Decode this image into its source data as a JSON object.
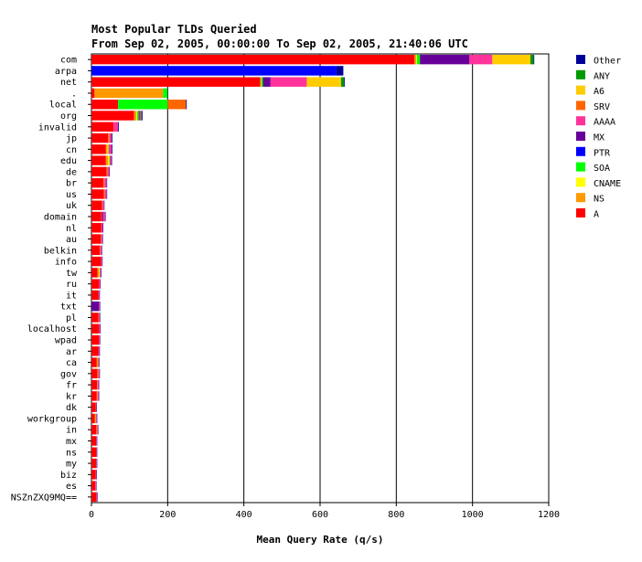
{
  "chart_data": {
    "type": "bar",
    "orientation": "horizontal",
    "stacked": true,
    "title": "Most Popular TLDs Queried",
    "subtitle": "From Sep 02, 2005, 00:00:00 To Sep 02, 2005, 21:40:06 UTC",
    "xlabel": "Mean Query Rate (q/s)",
    "ylabel": "",
    "xlim": [
      0,
      1200
    ],
    "xticks": [
      "0",
      "200",
      "400",
      "600",
      "800",
      "1000",
      "1200"
    ],
    "grid": "vertical",
    "legend_position": "right",
    "categories": [
      "com",
      "arpa",
      "net",
      ".",
      "local",
      "org",
      "invalid",
      "jp",
      "cn",
      "edu",
      "de",
      "br",
      "us",
      "uk",
      "domain",
      "nl",
      "au",
      "belkin",
      "info",
      "tw",
      "ru",
      "it",
      "txt",
      "pl",
      "localhost",
      "wpad",
      "ar",
      "ca",
      "gov",
      "fr",
      "kr",
      "dk",
      "workgroup",
      "in",
      "mx",
      "ns",
      "my",
      "biz",
      "es",
      "NSZnZXQ9MQ=="
    ],
    "series": [
      {
        "name": "A",
        "color": "#ff0000",
        "values": [
          848,
          0,
          443,
          8,
          70,
          112,
          58,
          44,
          38,
          38,
          40,
          32,
          33,
          28,
          26,
          26,
          24,
          22,
          25,
          16,
          20,
          18,
          0,
          18,
          20,
          20,
          18,
          14,
          16,
          15,
          14,
          11,
          9,
          13,
          12,
          13,
          12,
          11,
          10,
          13
        ]
      },
      {
        "name": "NS",
        "color": "#ff9900",
        "values": [
          4,
          0,
          2,
          180,
          0,
          6,
          0,
          3,
          4,
          6,
          2,
          2,
          2,
          1,
          1,
          0,
          1,
          1,
          0,
          4,
          0,
          0,
          0,
          1,
          0,
          0,
          0,
          4,
          2,
          1,
          2,
          0,
          3,
          2,
          0,
          0,
          0,
          0,
          0,
          0
        ]
      },
      {
        "name": "CNAME",
        "color": "#ffff00",
        "values": [
          2,
          0,
          1,
          0,
          0,
          2,
          0,
          0,
          2,
          3,
          0,
          0,
          0,
          0,
          0,
          0,
          0,
          0,
          0,
          2,
          0,
          0,
          0,
          0,
          0,
          0,
          0,
          0,
          0,
          0,
          0,
          0,
          0,
          0,
          0,
          0,
          0,
          0,
          0,
          0
        ]
      },
      {
        "name": "SOA",
        "color": "#00ff00",
        "values": [
          8,
          0,
          4,
          12,
          130,
          4,
          0,
          0,
          1,
          1,
          0,
          0,
          0,
          0,
          0,
          0,
          0,
          0,
          0,
          0,
          0,
          0,
          0,
          0,
          0,
          0,
          0,
          0,
          0,
          0,
          0,
          0,
          0,
          0,
          0,
          0,
          0,
          0,
          0,
          0
        ]
      },
      {
        "name": "PTR",
        "color": "#0000ff",
        "values": [
          0,
          643,
          0,
          0,
          0,
          0,
          0,
          0,
          0,
          0,
          0,
          0,
          0,
          0,
          0,
          0,
          0,
          0,
          0,
          0,
          0,
          0,
          0,
          0,
          0,
          0,
          0,
          0,
          0,
          0,
          0,
          0,
          0,
          0,
          0,
          0,
          0,
          0,
          0,
          0
        ]
      },
      {
        "name": "MX",
        "color": "#660099",
        "values": [
          130,
          0,
          20,
          0,
          0,
          2,
          0,
          0,
          0,
          0,
          0,
          0,
          0,
          0,
          3,
          0,
          0,
          0,
          0,
          0,
          0,
          0,
          20,
          0,
          0,
          0,
          0,
          0,
          0,
          0,
          0,
          0,
          0,
          0,
          0,
          0,
          0,
          0,
          0,
          0
        ]
      },
      {
        "name": "AAAA",
        "color": "#ff3399",
        "values": [
          60,
          0,
          95,
          0,
          0,
          4,
          12,
          6,
          8,
          4,
          5,
          6,
          5,
          4,
          6,
          4,
          4,
          4,
          3,
          3,
          3,
          3,
          2,
          3,
          3,
          2,
          3,
          2,
          3,
          3,
          3,
          2,
          2,
          2,
          2,
          1,
          2,
          2,
          2,
          2
        ]
      },
      {
        "name": "SRV",
        "color": "#ff6600",
        "values": [
          0,
          0,
          0,
          0,
          48,
          0,
          0,
          0,
          0,
          0,
          0,
          0,
          0,
          0,
          0,
          0,
          0,
          0,
          0,
          0,
          0,
          0,
          0,
          0,
          0,
          0,
          0,
          0,
          0,
          0,
          0,
          0,
          0,
          0,
          0,
          0,
          0,
          0,
          0,
          0
        ]
      },
      {
        "name": "A6",
        "color": "#ffcc00",
        "values": [
          100,
          0,
          90,
          0,
          0,
          0,
          0,
          0,
          0,
          0,
          0,
          0,
          0,
          0,
          0,
          0,
          0,
          0,
          0,
          0,
          0,
          0,
          0,
          0,
          0,
          0,
          0,
          0,
          0,
          0,
          0,
          0,
          0,
          0,
          0,
          0,
          0,
          0,
          0,
          0
        ]
      },
      {
        "name": "ANY",
        "color": "#009900",
        "values": [
          8,
          0,
          8,
          0,
          0,
          2,
          0,
          0,
          0,
          0,
          0,
          0,
          0,
          0,
          0,
          0,
          0,
          0,
          0,
          0,
          0,
          0,
          0,
          0,
          0,
          0,
          0,
          0,
          0,
          0,
          0,
          0,
          0,
          0,
          0,
          0,
          0,
          0,
          0,
          0
        ]
      },
      {
        "name": "Other",
        "color": "#000099",
        "values": [
          2,
          18,
          2,
          1,
          2,
          2,
          2,
          2,
          2,
          2,
          1,
          1,
          1,
          1,
          1,
          1,
          1,
          1,
          1,
          1,
          1,
          1,
          1,
          1,
          1,
          1,
          1,
          1,
          1,
          1,
          1,
          1,
          1,
          1,
          1,
          1,
          1,
          1,
          1,
          1
        ]
      }
    ],
    "legend_order": [
      "Other",
      "ANY",
      "A6",
      "SRV",
      "AAAA",
      "MX",
      "PTR",
      "SOA",
      "CNAME",
      "NS",
      "A"
    ]
  }
}
